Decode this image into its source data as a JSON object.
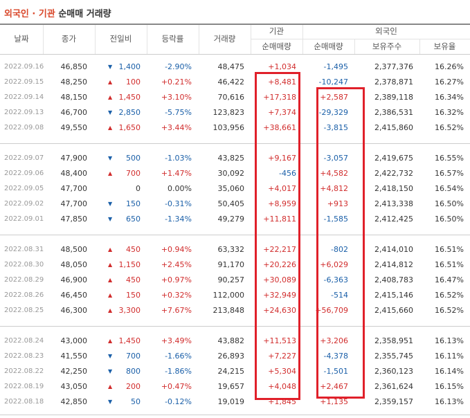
{
  "title": {
    "highlight": "외국인 · 기관",
    "rest": "순매매 거래량"
  },
  "header": {
    "columns": [
      "날짜",
      "종가",
      "전일비",
      "등락률",
      "거래량"
    ],
    "groups": [
      {
        "label": "기관",
        "subs": [
          "순매매량"
        ]
      },
      {
        "label": "외국인",
        "subs": [
          "순매매량",
          "보유주수",
          "보유율"
        ]
      }
    ]
  },
  "table": {
    "rows": [
      {
        "date": "2022.09.16",
        "close": "46,850",
        "dir": "down",
        "change": "1,400",
        "rate": "-2.90%",
        "volume": "48,475",
        "inst": "+1,034",
        "foreign": "-1,495",
        "shares": "2,377,376",
        "ratio": "16.26%"
      },
      {
        "date": "2022.09.15",
        "close": "48,250",
        "dir": "up",
        "change": "100",
        "rate": "+0.21%",
        "volume": "46,422",
        "inst": "+8,481",
        "foreign": "-10,247",
        "shares": "2,378,871",
        "ratio": "16.27%"
      },
      {
        "date": "2022.09.14",
        "close": "48,150",
        "dir": "up",
        "change": "1,450",
        "rate": "+3.10%",
        "volume": "70,616",
        "inst": "+17,318",
        "foreign": "+2,587",
        "shares": "2,389,118",
        "ratio": "16.34%"
      },
      {
        "date": "2022.09.13",
        "close": "46,700",
        "dir": "down",
        "change": "2,850",
        "rate": "-5.75%",
        "volume": "123,823",
        "inst": "+7,374",
        "foreign": "-29,329",
        "shares": "2,386,531",
        "ratio": "16.32%"
      },
      {
        "date": "2022.09.08",
        "close": "49,550",
        "dir": "up",
        "change": "1,650",
        "rate": "+3.44%",
        "volume": "103,956",
        "inst": "+38,661",
        "foreign": "-3,815",
        "shares": "2,415,860",
        "ratio": "16.52%"
      },
      {
        "date": "2022.09.07",
        "close": "47,900",
        "dir": "down",
        "change": "500",
        "rate": "-1.03%",
        "volume": "43,825",
        "inst": "+9,167",
        "foreign": "-3,057",
        "shares": "2,419,675",
        "ratio": "16.55%"
      },
      {
        "date": "2022.09.06",
        "close": "48,400",
        "dir": "up",
        "change": "700",
        "rate": "+1.47%",
        "volume": "30,092",
        "inst": "-456",
        "foreign": "+4,582",
        "shares": "2,422,732",
        "ratio": "16.57%"
      },
      {
        "date": "2022.09.05",
        "close": "47,700",
        "dir": "none",
        "change": "0",
        "rate": "0.00%",
        "volume": "35,060",
        "inst": "+4,017",
        "foreign": "+4,812",
        "shares": "2,418,150",
        "ratio": "16.54%"
      },
      {
        "date": "2022.09.02",
        "close": "47,700",
        "dir": "down",
        "change": "150",
        "rate": "-0.31%",
        "volume": "50,405",
        "inst": "+8,959",
        "foreign": "+913",
        "shares": "2,413,338",
        "ratio": "16.50%"
      },
      {
        "date": "2022.09.01",
        "close": "47,850",
        "dir": "down",
        "change": "650",
        "rate": "-1.34%",
        "volume": "49,279",
        "inst": "+11,811",
        "foreign": "-1,585",
        "shares": "2,412,425",
        "ratio": "16.50%"
      },
      {
        "date": "2022.08.31",
        "close": "48,500",
        "dir": "up",
        "change": "450",
        "rate": "+0.94%",
        "volume": "63,332",
        "inst": "+22,217",
        "foreign": "-802",
        "shares": "2,414,010",
        "ratio": "16.51%"
      },
      {
        "date": "2022.08.30",
        "close": "48,050",
        "dir": "up",
        "change": "1,150",
        "rate": "+2.45%",
        "volume": "91,170",
        "inst": "+20,226",
        "foreign": "+6,029",
        "shares": "2,414,812",
        "ratio": "16.51%"
      },
      {
        "date": "2022.08.29",
        "close": "46,900",
        "dir": "up",
        "change": "450",
        "rate": "+0.97%",
        "volume": "90,257",
        "inst": "+30,089",
        "foreign": "-6,363",
        "shares": "2,408,783",
        "ratio": "16.47%"
      },
      {
        "date": "2022.08.26",
        "close": "46,450",
        "dir": "up",
        "change": "150",
        "rate": "+0.32%",
        "volume": "112,000",
        "inst": "+32,949",
        "foreign": "-514",
        "shares": "2,415,146",
        "ratio": "16.52%"
      },
      {
        "date": "2022.08.25",
        "close": "46,300",
        "dir": "up",
        "change": "3,300",
        "rate": "+7.67%",
        "volume": "213,848",
        "inst": "+24,630",
        "foreign": "+56,709",
        "shares": "2,415,660",
        "ratio": "16.52%"
      },
      {
        "date": "2022.08.24",
        "close": "43,000",
        "dir": "up",
        "change": "1,450",
        "rate": "+3.49%",
        "volume": "43,882",
        "inst": "+11,513",
        "foreign": "+3,206",
        "shares": "2,358,951",
        "ratio": "16.13%"
      },
      {
        "date": "2022.08.23",
        "close": "41,550",
        "dir": "down",
        "change": "700",
        "rate": "-1.66%",
        "volume": "26,893",
        "inst": "+7,227",
        "foreign": "-4,378",
        "shares": "2,355,745",
        "ratio": "16.11%"
      },
      {
        "date": "2022.08.22",
        "close": "42,250",
        "dir": "down",
        "change": "800",
        "rate": "-1.86%",
        "volume": "24,215",
        "inst": "+5,304",
        "foreign": "-1,501",
        "shares": "2,360,123",
        "ratio": "16.14%"
      },
      {
        "date": "2022.08.19",
        "close": "43,050",
        "dir": "up",
        "change": "200",
        "rate": "+0.47%",
        "volume": "19,657",
        "inst": "+4,048",
        "foreign": "+2,467",
        "shares": "2,361,624",
        "ratio": "16.15%"
      },
      {
        "date": "2022.08.18",
        "close": "42,850",
        "dir": "down",
        "change": "50",
        "rate": "-0.12%",
        "volume": "19,019",
        "inst": "+1,845",
        "foreign": "+1,135",
        "shares": "2,359,157",
        "ratio": "16.13%"
      }
    ]
  }
}
